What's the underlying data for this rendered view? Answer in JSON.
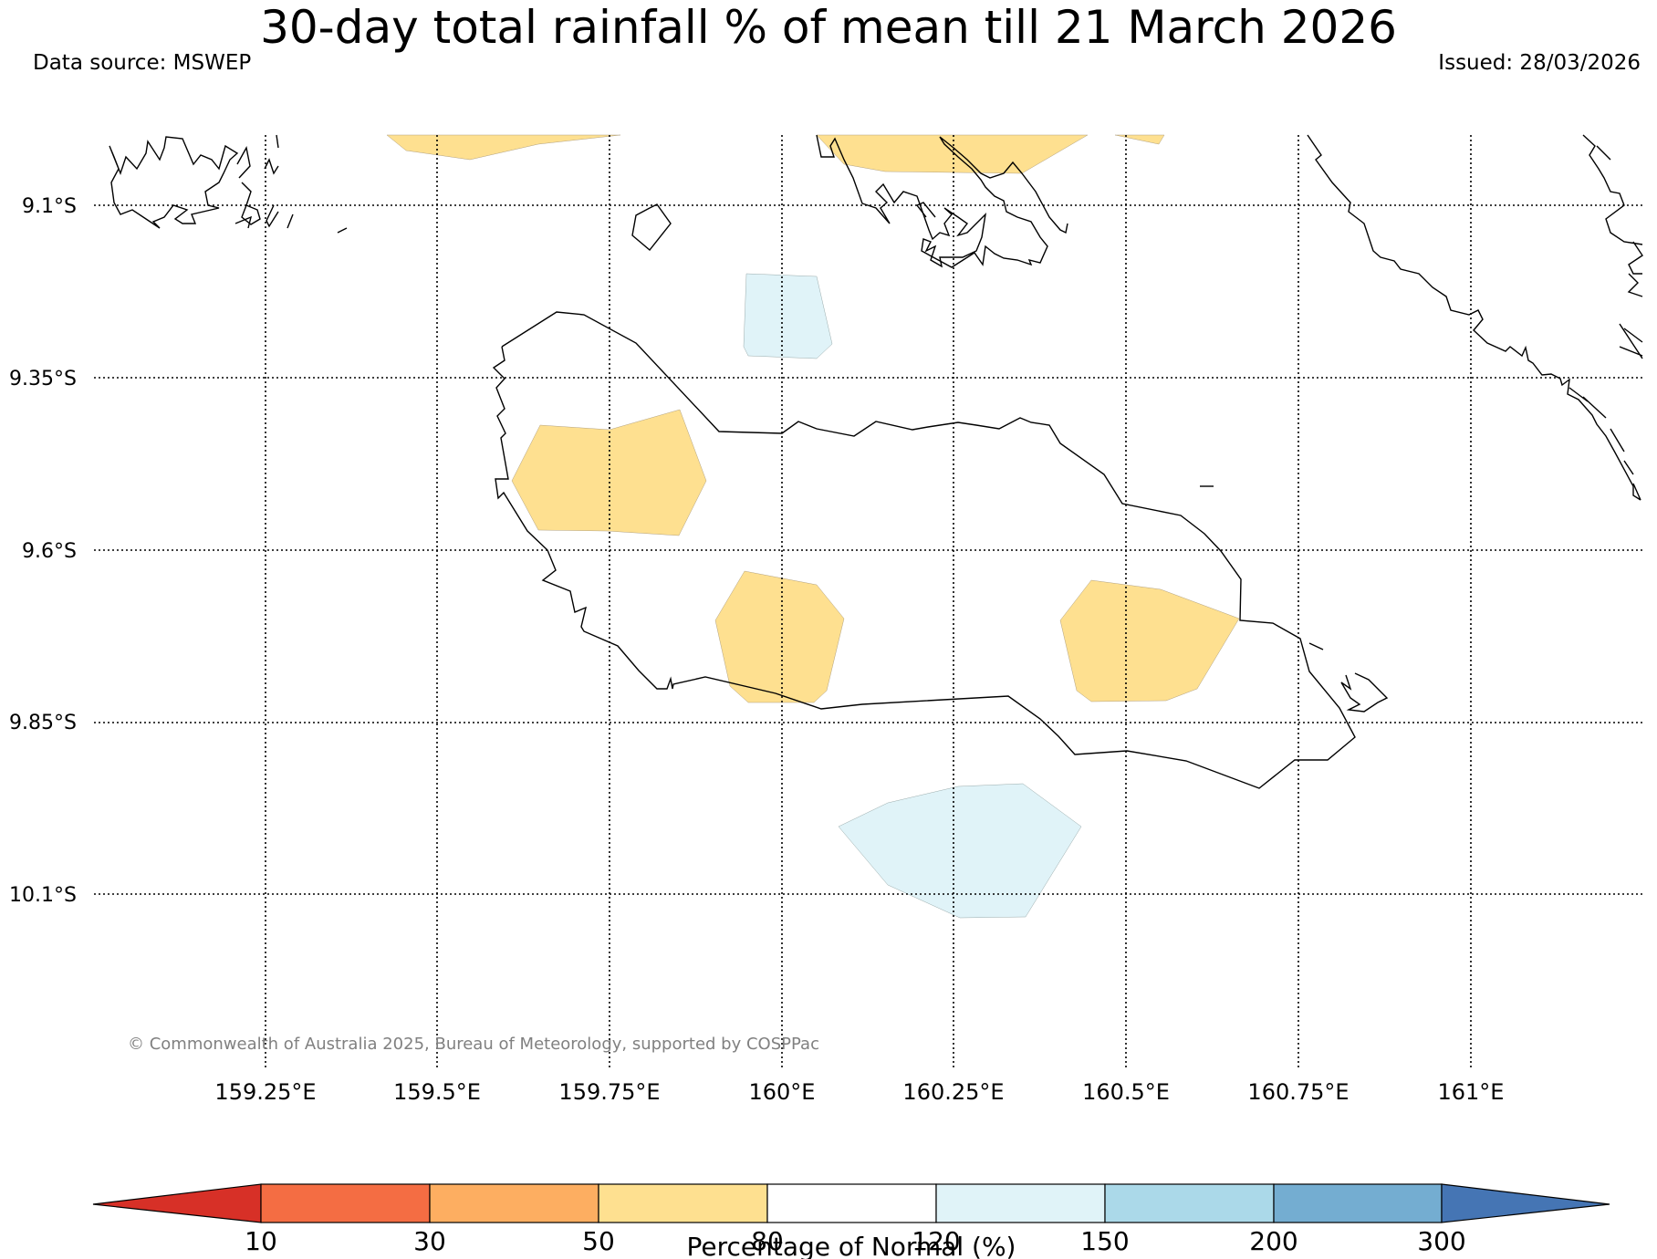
{
  "title": "30-day total rainfall % of mean till 21 March 2026",
  "data_source": "Data source: MSWEP",
  "issued": "Issued: 28/03/2026",
  "copyright": "© Commonwealth of Australia 2025, Bureau of Meteorology, supported by COSPPac",
  "latitude_labels": [
    "9.1°S",
    "9.35°S",
    "9.6°S",
    "9.85°S",
    "10.1°S"
  ],
  "longitude_labels": [
    "159.25°E",
    "159.5°E",
    "159.75°E",
    "160°E",
    "160.25°E",
    "160.5°E",
    "160.75°E",
    "161°E"
  ],
  "colorbar": {
    "title": "Percentage of Normal (%)",
    "tick_labels": [
      "10",
      "30",
      "50",
      "80",
      "120",
      "150",
      "200",
      "300"
    ],
    "colors": {
      "under": "#d73027",
      "10-30": "#f46d43",
      "30-50": "#fdae61",
      "50-80": "#fee090",
      "80-120": "#ffffff",
      "120-150": "#e0f3f8",
      "150-200": "#abd9e9",
      "200-300": "#74add1",
      "over": "#4575b4"
    }
  },
  "map_features": {
    "coastline_color": "#000000",
    "gridline_style": "dotted",
    "anomaly_regions": [
      {
        "category": "50-80",
        "color": "#fee090"
      },
      {
        "category": "120-150",
        "color": "#e0f3f8"
      }
    ]
  }
}
